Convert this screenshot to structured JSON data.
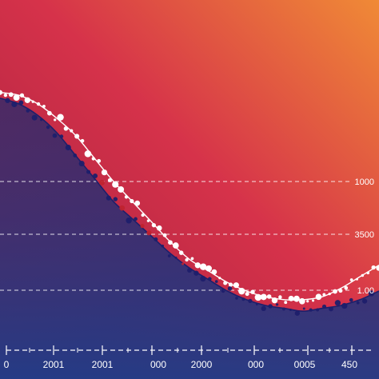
{
  "chart_data": {
    "type": "line",
    "x_tick_labels": [
      "0",
      "2001",
      "2001",
      "000",
      "2000",
      "000",
      "0005",
      "450"
    ],
    "y_tick_labels": [
      "1000",
      "3500",
      "1.00"
    ],
    "grid": {
      "horizontal_dashed": true
    },
    "series": [
      {
        "color": "#ffffff",
        "x": [
          0,
          0.05,
          0.1,
          0.15,
          0.2,
          0.25,
          0.3,
          0.35,
          0.4,
          0.45,
          0.5,
          0.55,
          0.6,
          0.65,
          0.7,
          0.75,
          0.8,
          0.85,
          0.9,
          0.95,
          1.0
        ],
        "y": [
          0.79,
          0.78,
          0.75,
          0.7,
          0.64,
          0.56,
          0.48,
          0.41,
          0.34,
          0.27,
          0.21,
          0.17,
          0.13,
          0.1,
          0.08,
          0.07,
          0.07,
          0.08,
          0.11,
          0.15,
          0.19
        ]
      },
      {
        "color": "#1d1f6b",
        "x": [
          0,
          0.05,
          0.1,
          0.15,
          0.2,
          0.25,
          0.3,
          0.35,
          0.4,
          0.45,
          0.5,
          0.55,
          0.6,
          0.65,
          0.7,
          0.75,
          0.8,
          0.85,
          0.9,
          0.95,
          1.0
        ],
        "y": [
          0.77,
          0.75,
          0.71,
          0.65,
          0.57,
          0.49,
          0.41,
          0.35,
          0.29,
          0.23,
          0.18,
          0.14,
          0.1,
          0.07,
          0.05,
          0.04,
          0.03,
          0.04,
          0.05,
          0.07,
          0.1
        ]
      }
    ],
    "colors": {
      "bg_top_right": "#f08a36",
      "bg_mid": "#d6324a",
      "bg_bottom_left": "#1f3f8c",
      "area_fill": "#2d2a73",
      "white_points": "#ffffff",
      "dark_points": "#1d1f6b",
      "red_points": "#c0232f"
    }
  }
}
